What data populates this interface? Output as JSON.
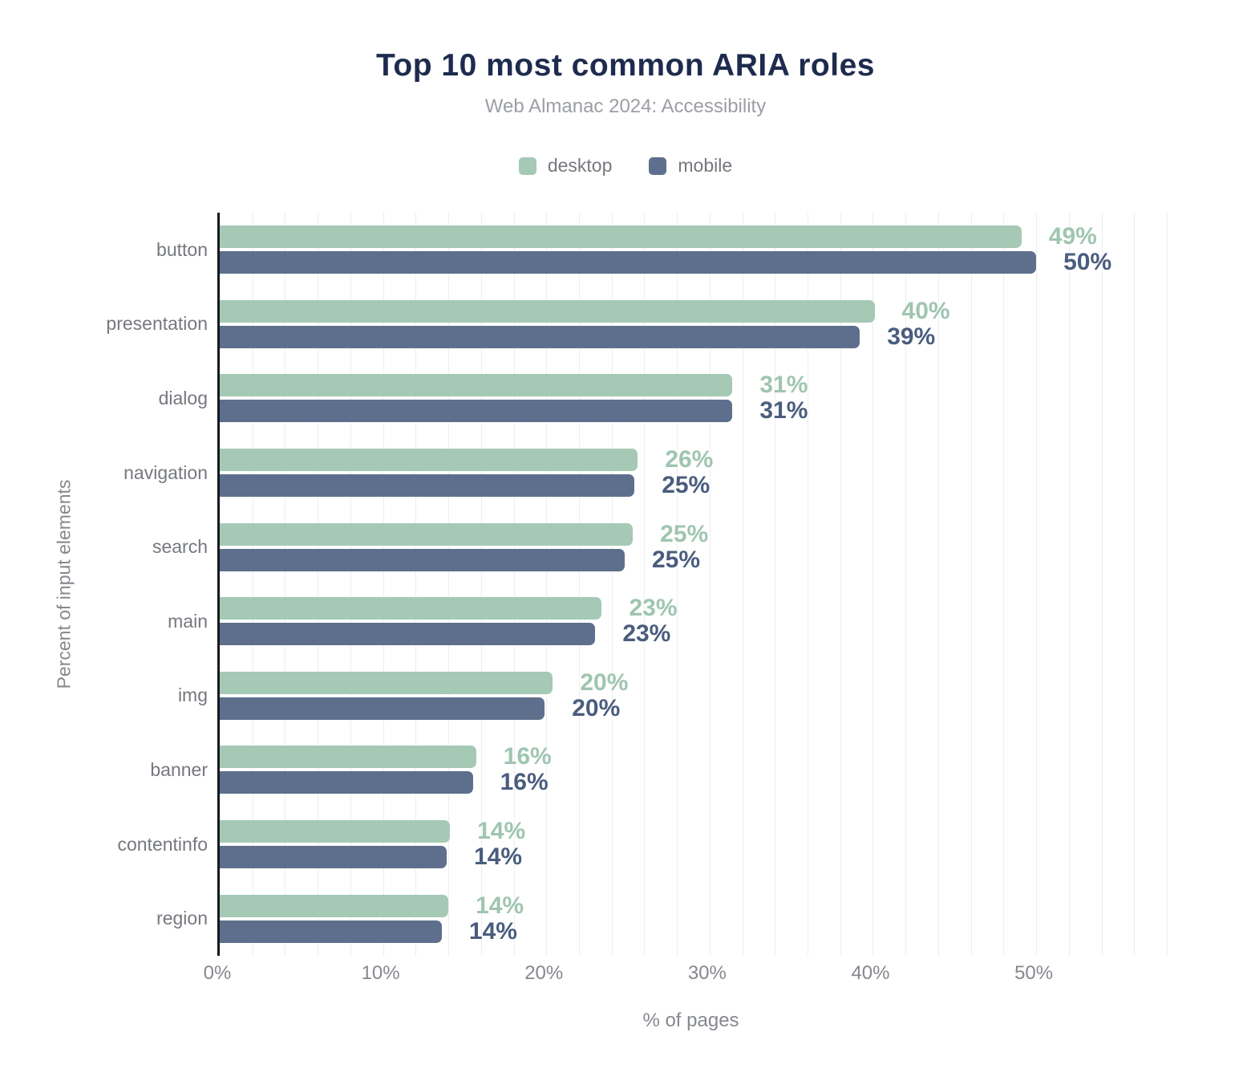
{
  "header": {
    "title": "Top 10 most common ARIA roles",
    "subtitle": "Web Almanac 2024: Accessibility"
  },
  "legend": {
    "items": [
      {
        "name": "desktop",
        "label": "desktop",
        "color": "#a5c9b5"
      },
      {
        "name": "mobile",
        "label": "mobile",
        "color": "#5d6f8c"
      }
    ]
  },
  "colors": {
    "title": "#1e2b4e",
    "subtitle": "#9b9ea4",
    "axis_text": "#85888e",
    "category_text": "#75787d",
    "grid": "#eceef4",
    "axis_line": "#17191e",
    "desktop_bar": "#a5c9b5",
    "desktop_label": "#9fc5b0",
    "mobile_bar": "#5d6f8c",
    "mobile_label": "#4a5d7e"
  },
  "chart_data": {
    "type": "bar",
    "orientation": "horizontal",
    "title": "Top 10 most common ARIA roles",
    "subtitle": "Web Almanac 2024: Accessibility",
    "categories": [
      "button",
      "presentation",
      "dialog",
      "navigation",
      "search",
      "main",
      "img",
      "banner",
      "contentinfo",
      "region"
    ],
    "series": [
      {
        "name": "desktop",
        "values": [
          49.1,
          40.1,
          31.4,
          25.6,
          25.3,
          23.4,
          20.4,
          15.7,
          14.1,
          14.0
        ],
        "labels": [
          "49%",
          "40%",
          "31%",
          "26%",
          "25%",
          "23%",
          "20%",
          "16%",
          "14%",
          "14%"
        ]
      },
      {
        "name": "mobile",
        "values": [
          50.0,
          39.2,
          31.4,
          25.4,
          24.8,
          23.0,
          19.9,
          15.5,
          13.9,
          13.6
        ],
        "labels": [
          "50%",
          "39%",
          "31%",
          "25%",
          "25%",
          "23%",
          "20%",
          "16%",
          "14%",
          "14%"
        ]
      }
    ],
    "xlabel": "% of pages",
    "ylabel": "Percent of input elements",
    "xlim": [
      0,
      58
    ],
    "xticks": [
      "0%",
      "10%",
      "20%",
      "30%",
      "40%",
      "50%"
    ],
    "xtick_values": [
      0,
      10,
      20,
      30,
      40,
      50
    ],
    "minor_grid_step": 2,
    "grid": "vertical-minor",
    "legend_position": "top"
  }
}
